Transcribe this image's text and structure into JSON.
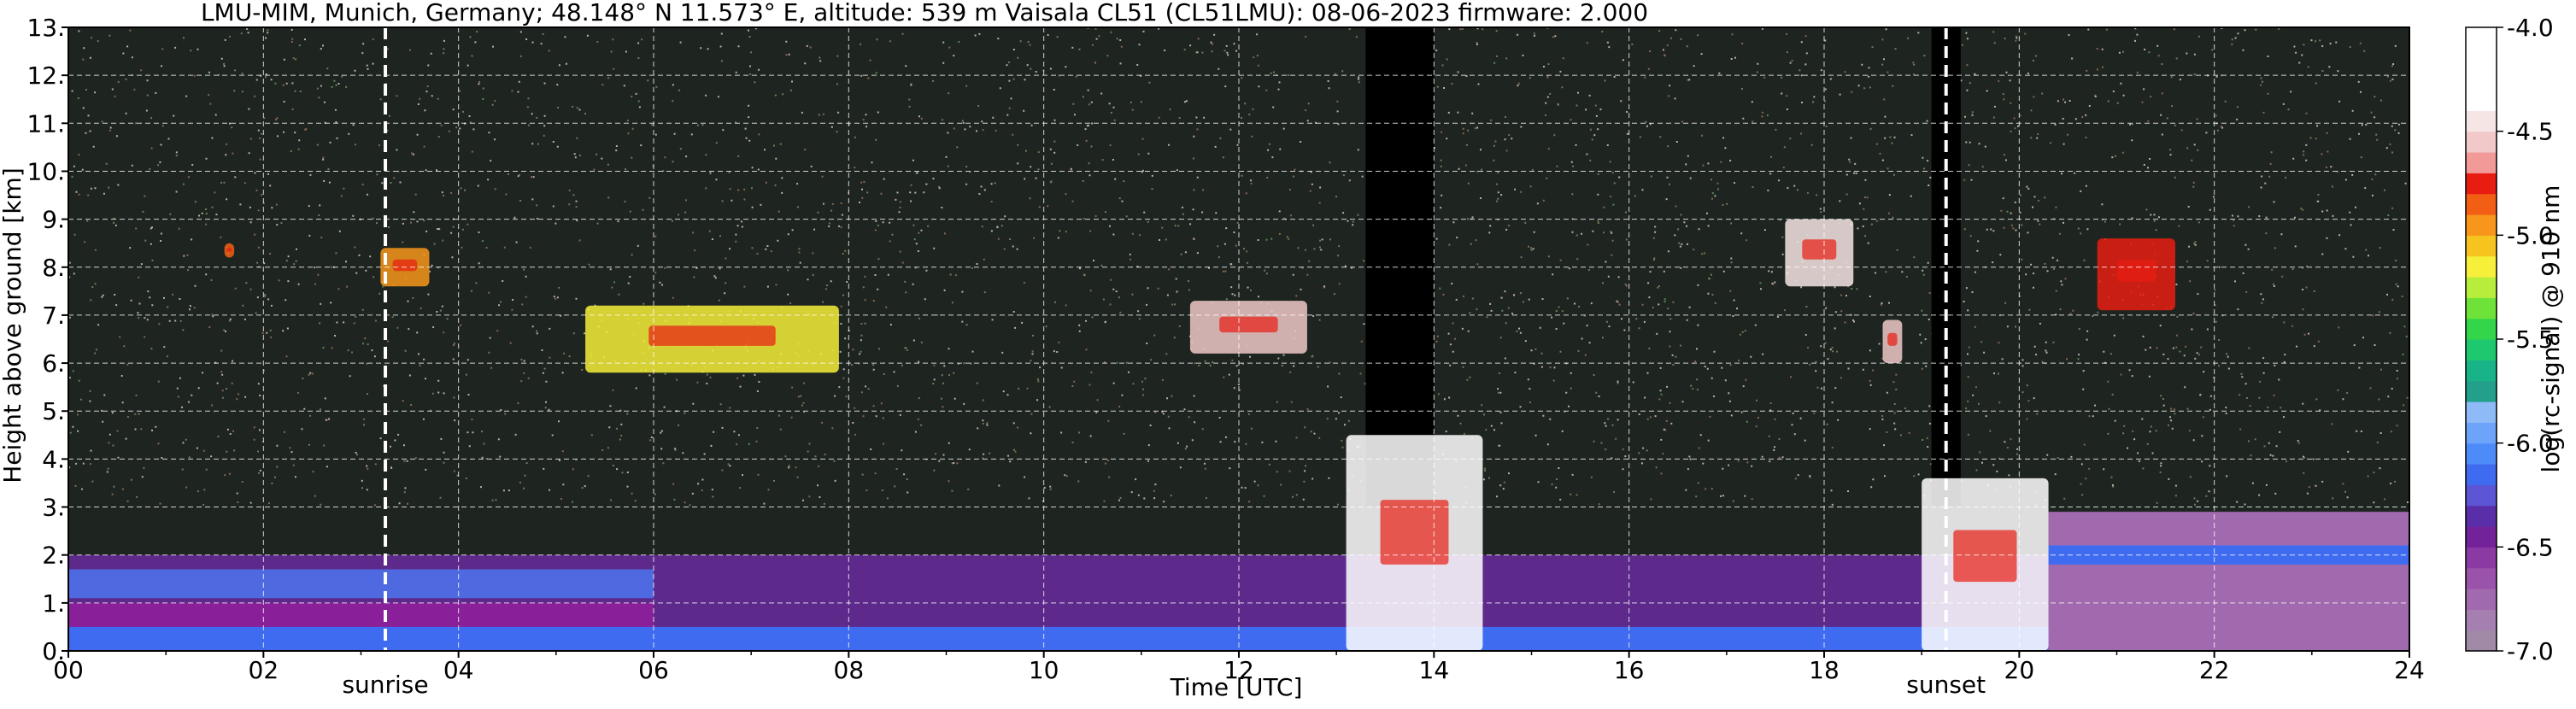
{
  "title": "LMU-MIM, Munich, Germany; 48.148° N 11.573° E, altitude: 539 m    Vaisala CL51 (CL51LMU): 08-06-2023    firmware: 2.000",
  "chart_data": {
    "type": "heatmap",
    "xlabel": "Time [UTC]",
    "ylabel": "Height above ground [km]",
    "xlim": [
      0,
      24
    ],
    "ylim": [
      0,
      13
    ],
    "x_ticks": [
      "00",
      "02",
      "04",
      "06",
      "08",
      "10",
      "12",
      "14",
      "16",
      "18",
      "20",
      "22",
      "24"
    ],
    "y_ticks": [
      "0.",
      "1.",
      "2.",
      "3.",
      "4.",
      "5.",
      "6.",
      "7.",
      "8.",
      "9.",
      "10.",
      "11.",
      "12.",
      "13."
    ],
    "grid": true,
    "colorbar": {
      "label": "log(rc-signal) @ 910 nm",
      "range": [
        -7.0,
        -4.0
      ],
      "ticks": [
        "-4.0",
        "-4.5",
        "-5.0",
        "-5.5",
        "-6.0",
        "-6.5",
        "-7.0"
      ],
      "colors": [
        "#a08aa6",
        "#a57fb0",
        "#a26aae",
        "#9b52ab",
        "#8c3aa3",
        "#74229a",
        "#5a2ea8",
        "#5c55d6",
        "#3f6bf0",
        "#4d8cf8",
        "#6ea3fa",
        "#8fbaf8",
        "#23a08b",
        "#18b487",
        "#1ec86f",
        "#33d64a",
        "#6fe23a",
        "#b7ee3c",
        "#f6f03a",
        "#f7c31f",
        "#f7961a",
        "#f25f14",
        "#e81d12",
        "#f29a98",
        "#f0c9c8",
        "#f6e5e5",
        "#ffffff",
        "#ffffff",
        "#ffffff",
        "#ffffff"
      ]
    },
    "markers": [
      {
        "label": "sunrise",
        "time": 3.25
      },
      {
        "label": "sunset",
        "time": 19.25
      }
    ],
    "background_layers": [
      {
        "name": "noise",
        "bottom_km": 3.0,
        "top_km": 13.0
      },
      {
        "name": "boundary-layer",
        "bottom_km": 0.0,
        "top_km": 2.0
      }
    ],
    "cloud_features": [
      {
        "start": 1.6,
        "end": 1.7,
        "base_km": 8.2,
        "top_km": 8.5,
        "color": "#f25f14"
      },
      {
        "start": 3.2,
        "end": 3.7,
        "base_km": 7.6,
        "top_km": 8.4,
        "color": "#f7961a"
      },
      {
        "start": 5.3,
        "end": 7.9,
        "base_km": 5.8,
        "top_km": 7.2,
        "color": "#f6f03a"
      },
      {
        "start": 11.5,
        "end": 12.7,
        "base_km": 6.2,
        "top_km": 7.3,
        "color": "#f0c9c8"
      },
      {
        "start": 17.6,
        "end": 18.3,
        "base_km": 7.6,
        "top_km": 9.0,
        "color": "#f6e5e5"
      },
      {
        "start": 18.6,
        "end": 18.8,
        "base_km": 6.0,
        "top_km": 6.9,
        "color": "#f0c9c8"
      },
      {
        "start": 20.8,
        "end": 21.6,
        "base_km": 7.1,
        "top_km": 8.6,
        "color": "#e81d12"
      },
      {
        "start": 13.1,
        "end": 14.5,
        "base_km": 0.0,
        "top_km": 4.5,
        "color": "#ffffff"
      },
      {
        "start": 19.0,
        "end": 20.3,
        "base_km": 0.0,
        "top_km": 3.6,
        "color": "#ffffff"
      }
    ],
    "no_signal_columns": [
      {
        "start": 13.3,
        "end": 14.0
      },
      {
        "start": 19.1,
        "end": 19.4
      }
    ]
  }
}
